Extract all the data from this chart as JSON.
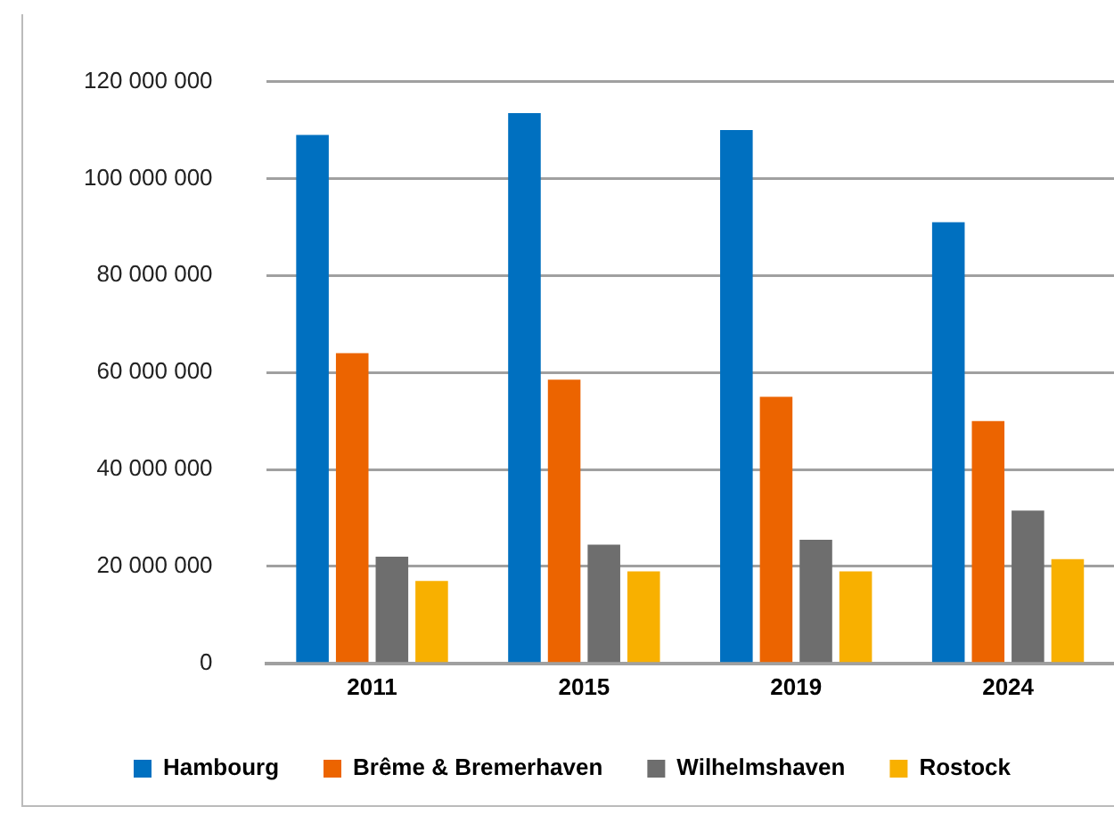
{
  "chart_data": {
    "type": "bar",
    "categories": [
      "2011",
      "2015",
      "2019",
      "2024"
    ],
    "series": [
      {
        "name": "Hambourg",
        "color": "#0070c0",
        "values": [
          109000000,
          113500000,
          110000000,
          91000000
        ]
      },
      {
        "name": "Brême & Bremerhaven",
        "color": "#ec6400",
        "values": [
          64000000,
          58500000,
          55000000,
          50000000
        ]
      },
      {
        "name": "Wilhelmshaven",
        "color": "#6e6e6e",
        "values": [
          22000000,
          24500000,
          25500000,
          31500000
        ]
      },
      {
        "name": "Rostock",
        "color": "#f8b000",
        "values": [
          17000000,
          19000000,
          19000000,
          21500000
        ]
      }
    ],
    "ylim": [
      0,
      120000000
    ],
    "yticks": [
      {
        "value": 0,
        "label": "0"
      },
      {
        "value": 20000000,
        "label": "20 000 000"
      },
      {
        "value": 40000000,
        "label": "40 000 000"
      },
      {
        "value": 60000000,
        "label": "60 000 000"
      },
      {
        "value": 80000000,
        "label": "80 000 000"
      },
      {
        "value": 100000000,
        "label": "100 000 000"
      },
      {
        "value": 120000000,
        "label": "120 000 000"
      }
    ],
    "grid": "y",
    "legend": "bottom"
  }
}
